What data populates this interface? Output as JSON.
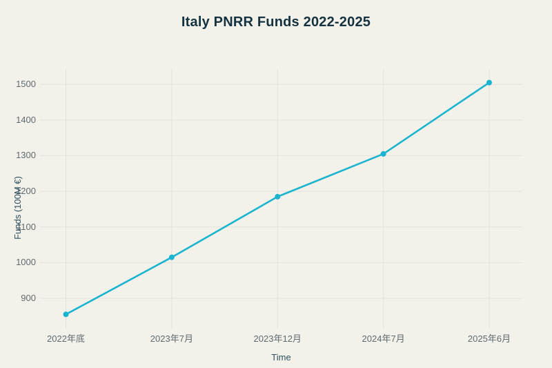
{
  "colors": {
    "background": "#f2f1ea",
    "grid": "#e3e3d9",
    "line": "#1ab4ce",
    "title_text": "#14323f",
    "axis_title_text": "#2f505e",
    "tick_text": "#5f6a6e"
  },
  "chart_data": {
    "type": "line",
    "title": "Italy PNRR Funds 2022-2025",
    "xlabel": "Time",
    "ylabel": "Funds (100M €)",
    "categories": [
      "2022年底",
      "2023年7月",
      "2023年12月",
      "2024年7月",
      "2025年6月"
    ],
    "values": [
      855,
      1015,
      1185,
      1305,
      1505
    ],
    "y_ticks": [
      900,
      1000,
      1100,
      1200,
      1300,
      1400,
      1500
    ],
    "ylim": [
      813,
      1543
    ],
    "grid": true,
    "legend_position": "none",
    "marker": "circle",
    "line_color": "#1ab4ce"
  }
}
